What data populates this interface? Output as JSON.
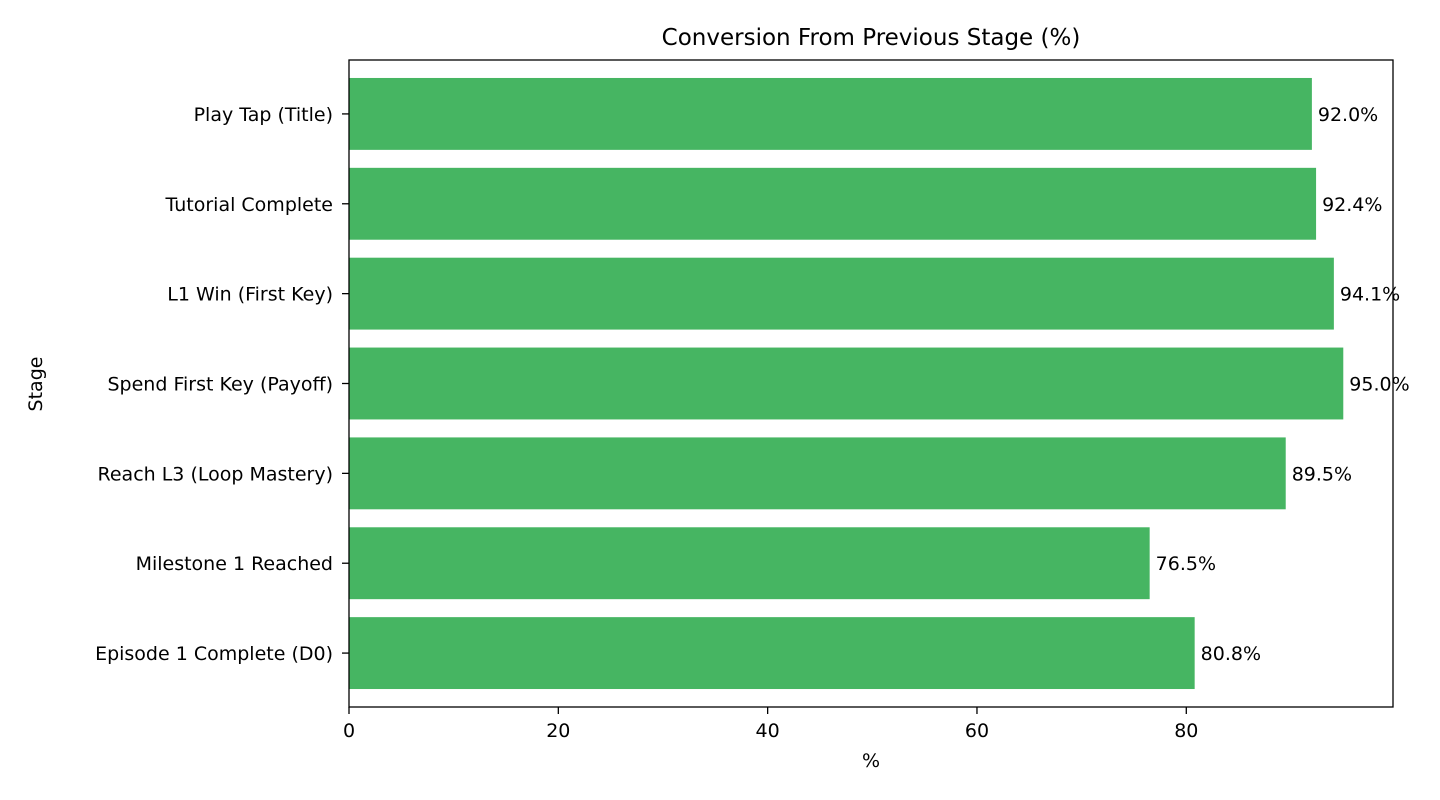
{
  "chart_data": {
    "type": "bar",
    "orientation": "horizontal",
    "title": "Conversion From Previous Stage (%)",
    "xlabel": "%",
    "ylabel": "Stage",
    "categories": [
      "Play Tap (Title)",
      "Tutorial Complete",
      "L1 Win (First Key)",
      "Spend First Key (Payoff)",
      "Reach L3 (Loop Mastery)",
      "Milestone 1 Reached",
      "Episode 1 Complete (D0)"
    ],
    "values": [
      92.0,
      92.4,
      94.1,
      95.0,
      89.5,
      76.5,
      80.8
    ],
    "value_labels": [
      "92.0%",
      "92.4%",
      "94.1%",
      "95.0%",
      "89.5%",
      "76.5%",
      "80.8%"
    ],
    "xlim": [
      0,
      99.75
    ],
    "xticks": [
      0,
      20,
      40,
      60,
      80
    ],
    "xtick_labels": [
      "0",
      "20",
      "40",
      "60",
      "80"
    ],
    "bar_color": "#46b562",
    "grid": false,
    "legend": "none"
  }
}
